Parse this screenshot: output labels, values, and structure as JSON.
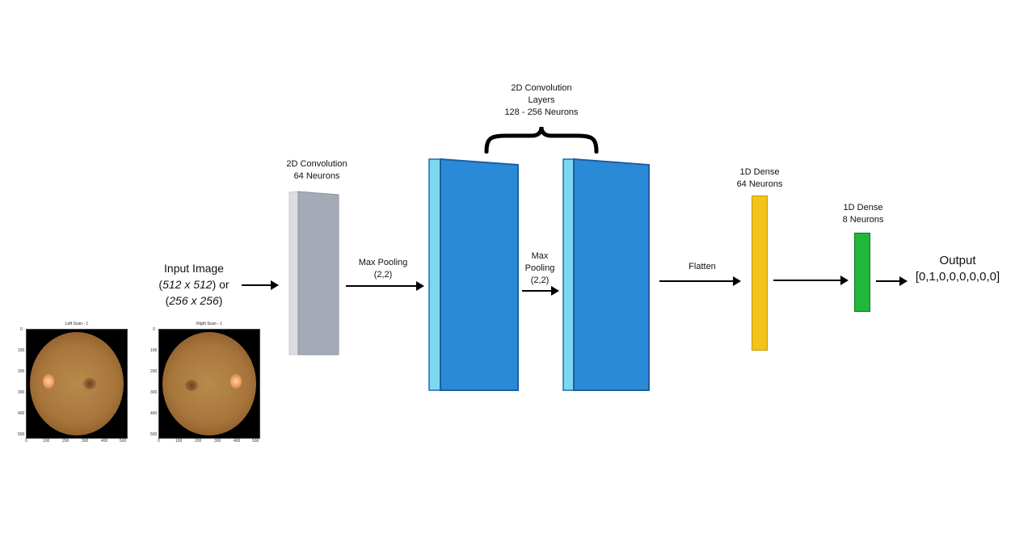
{
  "input": {
    "line1": "Input Image",
    "line2_a": "512 x 512",
    "line2_b": " or",
    "line3_a": "256 x 256",
    "left_scan_title": "Left Scan - 1",
    "right_scan_title": "Right Scan - 1",
    "y_ticks": [
      "0",
      "100",
      "200",
      "300",
      "400",
      "500"
    ],
    "x_ticks": [
      "0",
      "100",
      "200",
      "300",
      "400",
      "500"
    ]
  },
  "conv64": {
    "line1": "2D Convolution",
    "line2": "64 Neurons",
    "color": "#a4aab6"
  },
  "pool1": {
    "line1": "Max Pooling",
    "line2": "(2,2)"
  },
  "conv_group": {
    "line1": "2D Convolution",
    "line2": "Layers",
    "line3": "128 - 256 Neurons",
    "color": "#2a8ad8",
    "edge_color": "#7cd8f0"
  },
  "pool2": {
    "line1": "Max",
    "line2": "Pooling",
    "line3": "(2,2)"
  },
  "flatten": {
    "label": "Flatten"
  },
  "dense64": {
    "line1": "1D Dense",
    "line2": "64 Neurons",
    "color": "#f2c31c"
  },
  "dense8": {
    "line1": "1D Dense",
    "line2": "8 Neurons",
    "color": "#1fb83a"
  },
  "output": {
    "line1": "Output",
    "line2": "[0,1,0,0,0,0,0,0]"
  }
}
